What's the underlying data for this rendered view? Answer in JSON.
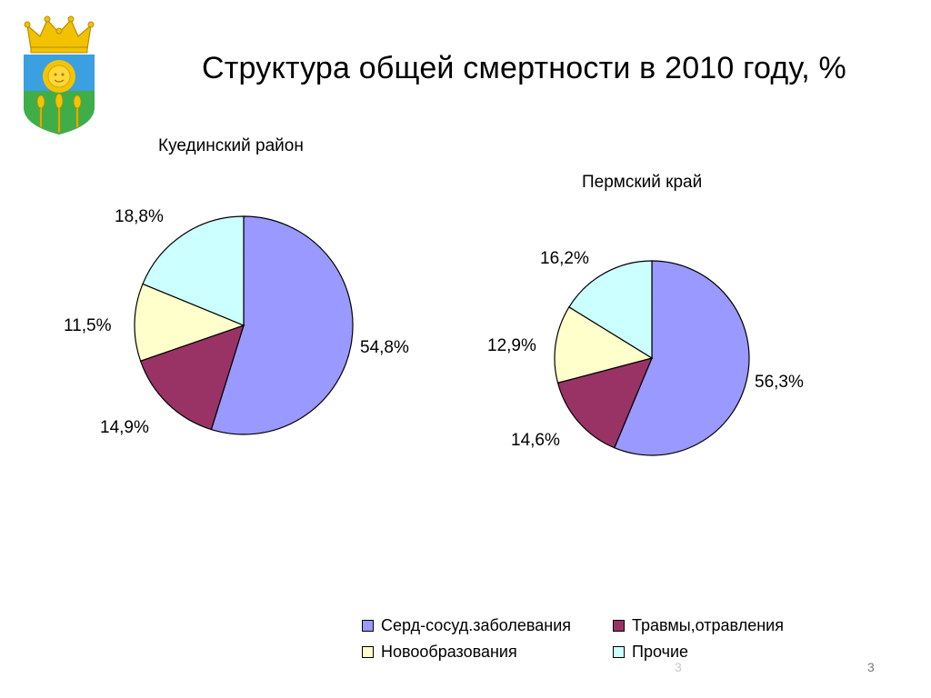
{
  "title": "Структура общей смертности в 2010 году, %",
  "colors": {
    "cardio": "#9999ff",
    "injuries": "#993366",
    "neoplasms": "#ffffcc",
    "other": "#ccffff",
    "outline": "#000000"
  },
  "chart_data": [
    {
      "type": "pie",
      "title": "Куединский район",
      "categories": [
        "Серд-сосуд.заболевания",
        "Травмы,отравления",
        "Новообразования",
        "Прочие"
      ],
      "values": [
        54.8,
        14.9,
        11.5,
        18.8
      ],
      "value_labels": [
        "54,8%",
        "14,9%",
        "11,5%",
        "18,8%"
      ],
      "legend": "bottom-right"
    },
    {
      "type": "pie",
      "title": "Пермский край",
      "categories": [
        "Серд-сосуд.заболевания",
        "Травмы,отравления",
        "Новообразования",
        "Прочие"
      ],
      "values": [
        56.3,
        14.6,
        12.9,
        16.2
      ],
      "value_labels": [
        "56,3%",
        "14,6%",
        "12,9%",
        "16,2%"
      ],
      "legend": "bottom-right"
    }
  ],
  "legend": {
    "items": [
      {
        "label": "Серд-сосуд.заболевания",
        "color": "#9999ff"
      },
      {
        "label": "Травмы,отравления",
        "color": "#993366"
      },
      {
        "label": "Новообразования",
        "color": "#ffffcc"
      },
      {
        "label": "Прочие",
        "color": "#ccffff"
      }
    ]
  },
  "page_number": "3",
  "page_number_ghost": "3",
  "emblem": {
    "icon": "coat-of-arms-icon"
  }
}
